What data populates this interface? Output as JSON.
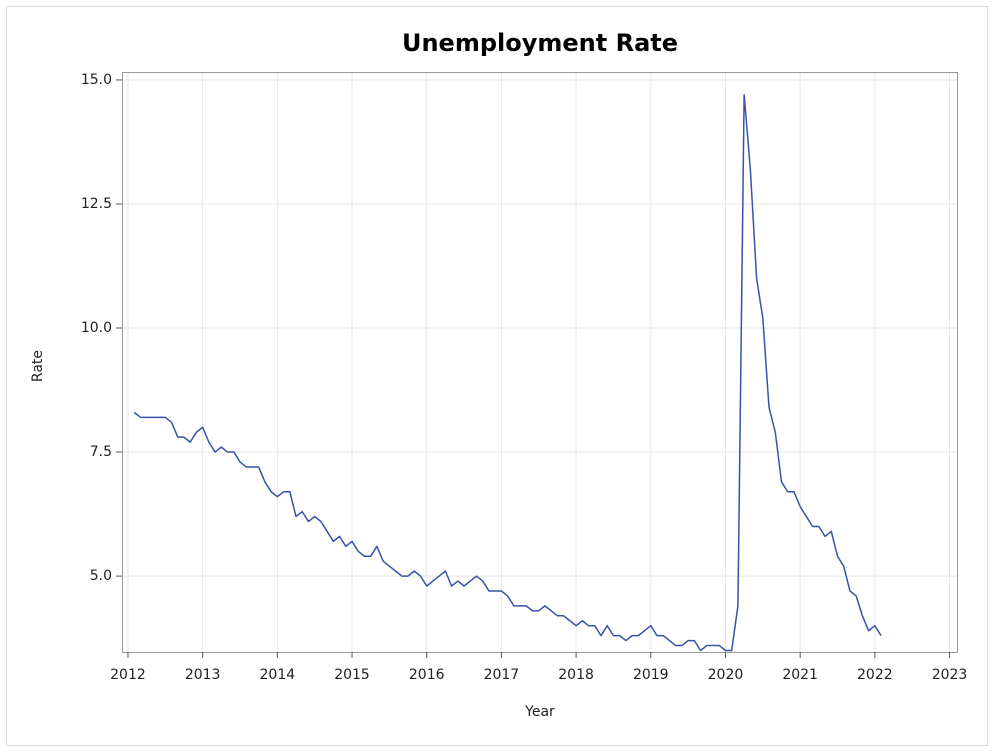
{
  "chart_data": {
    "type": "line",
    "title": "Unemployment Rate",
    "x_label": "Year",
    "y_label": "Rate",
    "x": [
      2012.083,
      2012.167,
      2012.25,
      2012.333,
      2012.417,
      2012.5,
      2012.583,
      2012.667,
      2012.75,
      2012.833,
      2012.917,
      2013.0,
      2013.083,
      2013.167,
      2013.25,
      2013.333,
      2013.417,
      2013.5,
      2013.583,
      2013.667,
      2013.75,
      2013.833,
      2013.917,
      2014.0,
      2014.083,
      2014.167,
      2014.25,
      2014.333,
      2014.417,
      2014.5,
      2014.583,
      2014.667,
      2014.75,
      2014.833,
      2014.917,
      2015.0,
      2015.083,
      2015.167,
      2015.25,
      2015.333,
      2015.417,
      2015.5,
      2015.583,
      2015.667,
      2015.75,
      2015.833,
      2015.917,
      2016.0,
      2016.083,
      2016.167,
      2016.25,
      2016.333,
      2016.417,
      2016.5,
      2016.583,
      2016.667,
      2016.75,
      2016.833,
      2016.917,
      2017.0,
      2017.083,
      2017.167,
      2017.25,
      2017.333,
      2017.417,
      2017.5,
      2017.583,
      2017.667,
      2017.75,
      2017.833,
      2017.917,
      2018.0,
      2018.083,
      2018.167,
      2018.25,
      2018.333,
      2018.417,
      2018.5,
      2018.583,
      2018.667,
      2018.75,
      2018.833,
      2018.917,
      2019.0,
      2019.083,
      2019.167,
      2019.25,
      2019.333,
      2019.417,
      2019.5,
      2019.583,
      2019.667,
      2019.75,
      2019.833,
      2019.917,
      2020.0,
      2020.083,
      2020.167,
      2020.25,
      2020.333,
      2020.417,
      2020.5,
      2020.583,
      2020.667,
      2020.75,
      2020.833,
      2020.917,
      2021.0,
      2021.083,
      2021.167,
      2021.25,
      2021.333,
      2021.417,
      2021.5,
      2021.583,
      2021.667,
      2021.75,
      2021.833,
      2021.917,
      2022.0,
      2022.083
    ],
    "series": [
      {
        "name": "Rate",
        "color": "#3653a6",
        "values": [
          8.3,
          8.2,
          8.2,
          8.2,
          8.2,
          8.2,
          8.1,
          7.8,
          7.8,
          7.7,
          7.9,
          8.0,
          7.7,
          7.5,
          7.6,
          7.5,
          7.5,
          7.3,
          7.2,
          7.2,
          7.2,
          6.9,
          6.7,
          6.6,
          6.7,
          6.7,
          6.2,
          6.3,
          6.1,
          6.2,
          6.1,
          5.9,
          5.7,
          5.8,
          5.6,
          5.7,
          5.5,
          5.4,
          5.4,
          5.6,
          5.3,
          5.2,
          5.1,
          5.0,
          5.0,
          5.1,
          5.0,
          4.8,
          4.9,
          5.0,
          5.1,
          4.8,
          4.9,
          4.8,
          4.9,
          5.0,
          4.9,
          4.7,
          4.7,
          4.7,
          4.6,
          4.4,
          4.4,
          4.4,
          4.3,
          4.3,
          4.4,
          4.3,
          4.2,
          4.2,
          4.1,
          4.0,
          4.1,
          4.0,
          4.0,
          3.8,
          4.0,
          3.8,
          3.8,
          3.7,
          3.8,
          3.8,
          3.9,
          4.0,
          3.8,
          3.8,
          3.7,
          3.6,
          3.6,
          3.7,
          3.7,
          3.5,
          3.6,
          3.6,
          3.6,
          3.5,
          3.5,
          4.4,
          14.7,
          13.2,
          11.0,
          10.2,
          8.4,
          7.9,
          6.9,
          6.7,
          6.7,
          6.4,
          6.2,
          6.0,
          6.0,
          5.8,
          5.9,
          5.4,
          5.2,
          4.7,
          4.6,
          4.2,
          3.9,
          4.0,
          3.8
        ]
      }
    ],
    "xlim": [
      2011.92,
      2023.1
    ],
    "xticks": [
      2012,
      2013,
      2014,
      2015,
      2016,
      2017,
      2018,
      2019,
      2020,
      2021,
      2022,
      2023
    ],
    "ylim": [
      3.47,
      15.16
    ],
    "yticks": [
      {
        "value": 5,
        "label": "5.0"
      },
      {
        "value": 7.5,
        "label": "7.5"
      },
      {
        "value": 10,
        "label": "10.0"
      },
      {
        "value": 12.5,
        "label": "12.5"
      },
      {
        "value": 15,
        "label": "15.0"
      }
    ],
    "grid": true
  }
}
